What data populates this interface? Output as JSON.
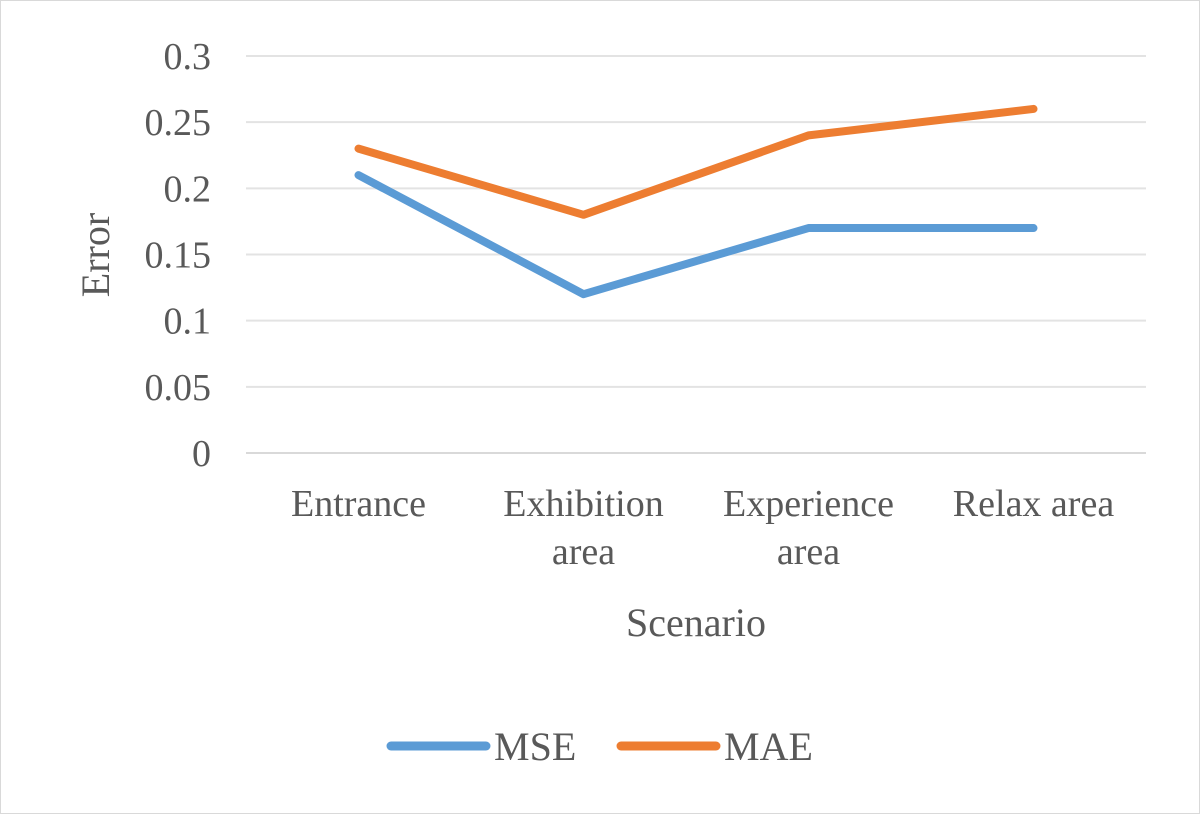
{
  "chart_data": {
    "type": "line",
    "categories": [
      [
        "Entrance"
      ],
      [
        "Exhibition",
        "area"
      ],
      [
        "Experience",
        "area"
      ],
      [
        "Relax area"
      ]
    ],
    "series": [
      {
        "name": "MSE",
        "color": "#5b9bd5",
        "values": [
          0.21,
          0.12,
          0.17,
          0.17
        ]
      },
      {
        "name": "MAE",
        "color": "#ed7d31",
        "values": [
          0.23,
          0.18,
          0.24,
          0.26
        ]
      }
    ],
    "ylim": [
      0,
      0.3
    ],
    "yticks": [
      "0",
      "0.05",
      "0.1",
      "0.15",
      "0.2",
      "0.25",
      "0.3"
    ],
    "xlabel": "Scenario",
    "ylabel": "Error",
    "legend_position": "bottom",
    "gridlines": true
  }
}
